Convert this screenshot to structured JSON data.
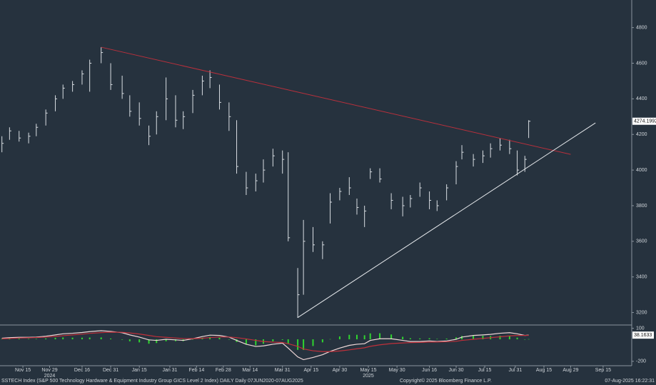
{
  "chart_data": {
    "type": "ohlc",
    "footer_left": "SSTECH Index (S&P 500 Technology Hardware & Equipment Industry Group GICS Level 2 Index) DAILY  Daily 07JUN2020-07AUG2025",
    "footer_center": "Copyright© 2025 Bloomberg Finance L.P.",
    "footer_right": "07-Aug-2025 16:22:31",
    "color": "#d9dee3",
    "x": [
      "2024-11-04",
      "2024-11-08",
      "2024-11-13",
      "2024-11-18",
      "2024-11-22",
      "2024-11-27",
      "2024-12-02",
      "2024-12-06",
      "2024-12-11",
      "2024-12-16",
      "2024-12-20",
      "2024-12-26",
      "2024-12-31",
      "2025-01-06",
      "2025-01-10",
      "2025-01-15",
      "2025-01-20",
      "2025-01-24",
      "2025-01-29",
      "2025-02-03",
      "2025-02-07",
      "2025-02-12",
      "2025-02-17",
      "2025-02-21",
      "2025-02-26",
      "2025-03-03",
      "2025-03-07",
      "2025-03-12",
      "2025-03-17",
      "2025-03-21",
      "2025-03-26",
      "2025-03-31",
      "2025-04-03",
      "2025-04-08",
      "2025-04-11",
      "2025-04-16",
      "2025-04-21",
      "2025-04-25",
      "2025-04-30",
      "2025-05-05",
      "2025-05-09",
      "2025-05-13",
      "2025-05-16",
      "2025-05-21",
      "2025-05-27",
      "2025-06-02",
      "2025-06-06",
      "2025-06-11",
      "2025-06-16",
      "2025-06-20",
      "2025-06-25",
      "2025-06-30",
      "2025-07-03",
      "2025-07-09",
      "2025-07-14",
      "2025-07-18",
      "2025-07-23",
      "2025-07-28",
      "2025-08-01",
      "2025-08-05",
      "2025-08-07"
    ],
    "high": [
      4190,
      4240,
      4220,
      4210,
      4260,
      4340,
      4420,
      4480,
      4500,
      4560,
      4620,
      4690,
      4600,
      4530,
      4420,
      4380,
      4250,
      4330,
      4520,
      4420,
      4330,
      4450,
      4530,
      4560,
      4480,
      4380,
      4280,
      3990,
      3980,
      4060,
      4120,
      4110,
      4100,
      3450,
      3720,
      3680,
      3600,
      3870,
      3900,
      3960,
      3840,
      3800,
      4010,
      4010,
      3870,
      3850,
      3860,
      3930,
      3880,
      3830,
      3920,
      4050,
      4140,
      4090,
      4110,
      4150,
      4180,
      4170,
      4110,
      4080,
      4280
    ],
    "low": [
      4100,
      4170,
      4160,
      4150,
      4190,
      4250,
      4330,
      4400,
      4440,
      4480,
      4440,
      4600,
      4450,
      4400,
      4300,
      4250,
      4140,
      4200,
      4280,
      4240,
      4230,
      4320,
      4420,
      4460,
      4340,
      4220,
      3980,
      3860,
      3880,
      3930,
      4020,
      3980,
      3600,
      3170,
      3300,
      3540,
      3500,
      3700,
      3830,
      3860,
      3750,
      3680,
      3950,
      3930,
      3780,
      3740,
      3790,
      3850,
      3780,
      3770,
      3830,
      3920,
      4060,
      4020,
      4040,
      4070,
      4110,
      4090,
      3970,
      3990,
      4180
    ],
    "close": [
      4150,
      4220,
      4180,
      4190,
      4240,
      4320,
      4400,
      4460,
      4480,
      4540,
      4600,
      4660,
      4480,
      4430,
      4330,
      4290,
      4190,
      4300,
      4400,
      4280,
      4300,
      4420,
      4500,
      4520,
      4380,
      4300,
      4020,
      3900,
      3940,
      4000,
      4080,
      4060,
      3620,
      3300,
      3600,
      3580,
      3580,
      3820,
      3880,
      3900,
      3790,
      3770,
      3990,
      3950,
      3830,
      3800,
      3840,
      3900,
      3830,
      3800,
      3900,
      4020,
      4100,
      4060,
      4080,
      4120,
      4140,
      4120,
      4000,
      4060,
      4274.1992
    ],
    "last_label": "4274.1992",
    "xlim": [
      "2024-11-03",
      "2025-09-30"
    ],
    "ylim": [
      3130,
      4955
    ],
    "yticks": [
      3200,
      3400,
      3600,
      3800,
      4000,
      4200,
      4400,
      4600,
      4800
    ],
    "xticks": [
      {
        "value": "2024-11-15",
        "label": "Nov 15"
      },
      {
        "value": "2024-11-29",
        "label": "Nov 29"
      },
      {
        "value": "2024-12-16",
        "label": "Dec 16"
      },
      {
        "value": "2024-12-31",
        "label": "Dec 31"
      },
      {
        "value": "2025-01-15",
        "label": "Jan 15"
      },
      {
        "value": "2025-01-31",
        "label": "Jan 31"
      },
      {
        "value": "2025-02-14",
        "label": "Feb 14"
      },
      {
        "value": "2025-02-28",
        "label": "Feb 28"
      },
      {
        "value": "2025-03-14",
        "label": "Mar 14"
      },
      {
        "value": "2025-03-31",
        "label": "Mar 31"
      },
      {
        "value": "2025-04-15",
        "label": "Apr 15"
      },
      {
        "value": "2025-04-30",
        "label": "Apr 30"
      },
      {
        "value": "2025-05-15",
        "label": "May 15"
      },
      {
        "value": "2025-05-30",
        "label": "May 30"
      },
      {
        "value": "2025-06-16",
        "label": "Jun 16"
      },
      {
        "value": "2025-06-30",
        "label": "Jun 30"
      },
      {
        "value": "2025-07-15",
        "label": "Jul 15"
      },
      {
        "value": "2025-07-31",
        "label": "Jul 31"
      },
      {
        "value": "2025-08-15",
        "label": "Aug 15"
      },
      {
        "value": "2025-08-29",
        "label": "Aug 29"
      },
      {
        "value": "2025-09-15",
        "label": "Sep 15"
      }
    ],
    "year_labels": [
      {
        "value": "2024-11-29",
        "label": "2024"
      },
      {
        "value": "2025-05-15",
        "label": "2025"
      }
    ],
    "trendlines": [
      {
        "color": "#b8303c",
        "x": [
          "2024-12-26",
          "2025-08-29"
        ],
        "y": [
          4690,
          4088
        ]
      },
      {
        "color": "#e6e9ec",
        "x": [
          "2025-04-08",
          "2025-09-11"
        ],
        "y": [
          3172,
          4265
        ]
      }
    ],
    "lower": {
      "ylim": [
        -240,
        130
      ],
      "yticks": [
        100,
        -200
      ],
      "series": [
        {
          "color": "#f0d8d8",
          "values": [
            10,
            15,
            18,
            18,
            20,
            28,
            40,
            50,
            55,
            62,
            70,
            78,
            72,
            60,
            40,
            20,
            -5,
            -10,
            0,
            -5,
            -10,
            5,
            25,
            38,
            35,
            20,
            -10,
            -45,
            -65,
            -60,
            -45,
            -35,
            -80,
            -160,
            -185,
            -165,
            -140,
            -110,
            -80,
            -55,
            -45,
            -40,
            -10,
            5,
            5,
            -10,
            -20,
            -20,
            -15,
            -20,
            -15,
            0,
            20,
            35,
            40,
            45,
            55,
            60,
            50,
            35,
            38.1633
          ]
        },
        {
          "color": "#c0303a",
          "values": [
            5,
            8,
            12,
            14,
            16,
            20,
            26,
            33,
            40,
            47,
            54,
            61,
            65,
            64,
            58,
            48,
            35,
            24,
            18,
            12,
            7,
            6,
            10,
            16,
            21,
            21,
            15,
            4,
            -10,
            -20,
            -26,
            -29,
            -40,
            -64,
            -88,
            -104,
            -112,
            -112,
            -106,
            -96,
            -86,
            -77,
            -64,
            -50,
            -39,
            -33,
            -30,
            -28,
            -25,
            -24,
            -22,
            -18,
            -10,
            0,
            8,
            15,
            23,
            31,
            35,
            35,
            36
          ]
        }
      ],
      "histogram": {
        "color": "#2fd42f",
        "values": [
          5,
          7,
          6,
          4,
          4,
          8,
          14,
          17,
          15,
          15,
          16,
          17,
          7,
          -4,
          -18,
          -28,
          -40,
          -34,
          -18,
          -17,
          -17,
          -1,
          15,
          22,
          14,
          -1,
          -25,
          -49,
          -55,
          -40,
          -19,
          -6,
          -40,
          -96,
          -97,
          -61,
          -28,
          2,
          26,
          41,
          41,
          37,
          54,
          55,
          44,
          23,
          10,
          8,
          10,
          4,
          7,
          18,
          30,
          35,
          32,
          30,
          32,
          29,
          15,
          0,
          2
        ]
      },
      "last_label": "38.1633"
    }
  }
}
